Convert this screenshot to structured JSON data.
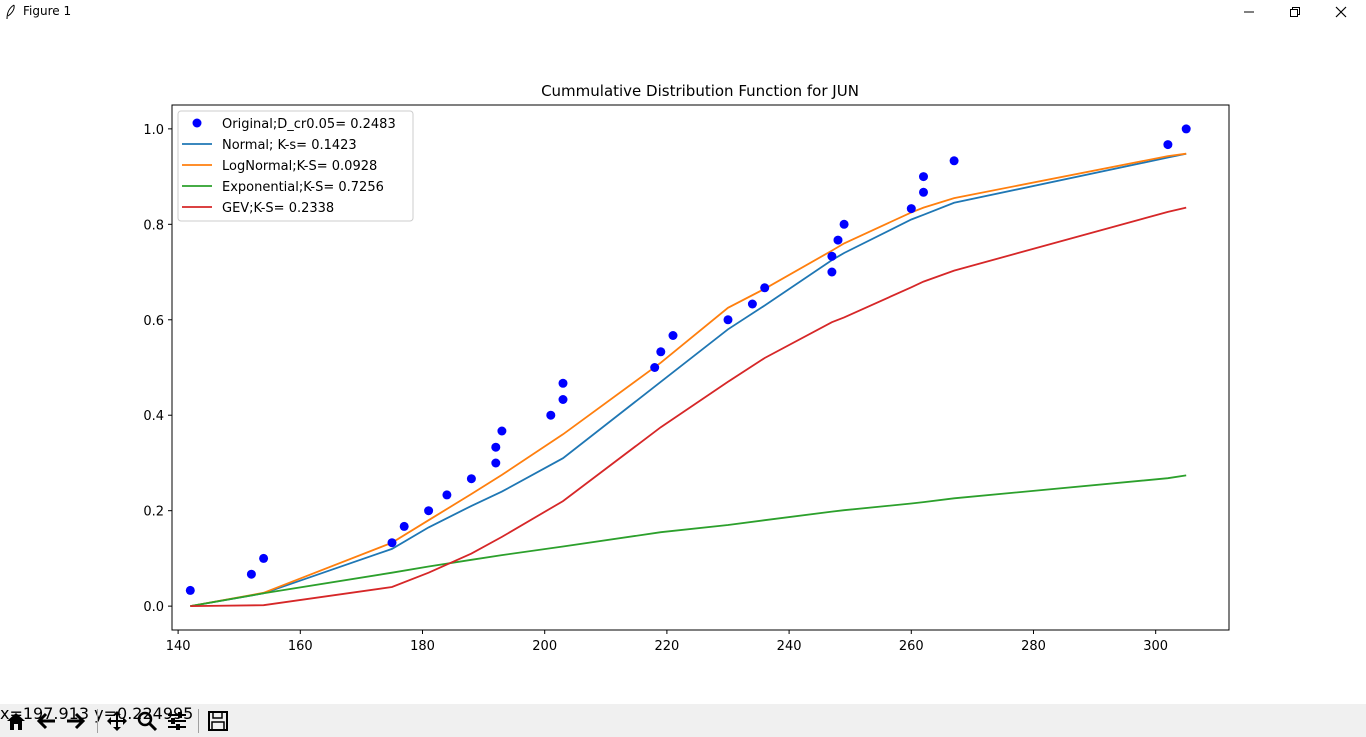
{
  "window": {
    "title": "Figure 1"
  },
  "toolbar": {
    "buttons": [
      "home",
      "back",
      "forward",
      "pan",
      "zoom",
      "configure-subplots",
      "save"
    ],
    "coord_x": "x=197.913",
    "coord_y": "y=0.224995"
  },
  "chart_data": {
    "type": "line",
    "title": "Cummulative Distribution Function for JUN",
    "xlabel": "",
    "ylabel": "",
    "xlim": [
      139,
      312
    ],
    "ylim": [
      -0.05,
      1.05
    ],
    "xticks": [
      140,
      160,
      180,
      200,
      220,
      240,
      260,
      280,
      300
    ],
    "yticks": [
      0.0,
      0.2,
      0.4,
      0.6,
      0.8,
      1.0
    ],
    "xtick_labels": [
      "140",
      "160",
      "180",
      "200",
      "220",
      "240",
      "260",
      "280",
      "300"
    ],
    "ytick_labels": [
      "0.0",
      "0.2",
      "0.4",
      "0.6",
      "0.8",
      "1.0"
    ],
    "legend_position": "top-left",
    "legend": [
      "Original;D_cr0.05= 0.2483",
      "Normal; K-s= 0.1423",
      "LogNormal;K-S= 0.0928",
      "Exponential;K-S= 0.7256",
      "GEV;K-S= 0.2338"
    ],
    "colors": {
      "Original": "#0000ff",
      "Normal": "#1f77b4",
      "LogNormal": "#ff7f0e",
      "Exponential": "#2ca02c",
      "GEV": "#d62728"
    },
    "scatter": {
      "name": "Original",
      "x": [
        142,
        152,
        154,
        175,
        177,
        181,
        184,
        188,
        192,
        192,
        193,
        201,
        203,
        203,
        218,
        219,
        221,
        230,
        234,
        236,
        247,
        247,
        248,
        249,
        260,
        262,
        262,
        267,
        302,
        305
      ],
      "y": [
        0.033,
        0.067,
        0.1,
        0.133,
        0.167,
        0.2,
        0.233,
        0.267,
        0.3,
        0.333,
        0.367,
        0.4,
        0.433,
        0.467,
        0.5,
        0.533,
        0.567,
        0.6,
        0.633,
        0.667,
        0.7,
        0.733,
        0.767,
        0.8,
        0.833,
        0.867,
        0.9,
        0.933,
        0.967,
        1.0
      ]
    },
    "x": [
      142,
      154,
      175,
      181,
      188,
      193,
      203,
      219,
      230,
      236,
      247,
      249,
      260,
      262,
      267,
      302,
      305
    ],
    "series": [
      {
        "name": "Normal",
        "values": [
          0.0,
          0.027,
          0.12,
          0.165,
          0.21,
          0.24,
          0.31,
          0.47,
          0.58,
          0.63,
          0.725,
          0.74,
          0.81,
          0.82,
          0.845,
          0.94,
          0.948
        ]
      },
      {
        "name": "LogNormal",
        "values": [
          0.0,
          0.028,
          0.133,
          0.18,
          0.235,
          0.275,
          0.36,
          0.51,
          0.625,
          0.665,
          0.745,
          0.76,
          0.825,
          0.835,
          0.855,
          0.943,
          0.948
        ]
      },
      {
        "name": "Exponential",
        "values": [
          0.0,
          0.027,
          0.07,
          0.083,
          0.097,
          0.107,
          0.125,
          0.155,
          0.17,
          0.18,
          0.198,
          0.201,
          0.215,
          0.218,
          0.226,
          0.268,
          0.274
        ]
      },
      {
        "name": "GEV",
        "values": [
          0.0,
          0.002,
          0.04,
          0.07,
          0.11,
          0.145,
          0.22,
          0.375,
          0.47,
          0.52,
          0.595,
          0.605,
          0.668,
          0.68,
          0.703,
          0.826,
          0.835
        ]
      }
    ]
  }
}
